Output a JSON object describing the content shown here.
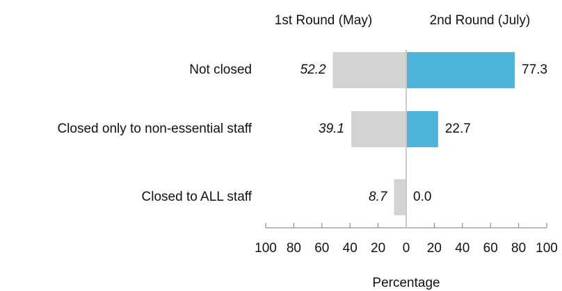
{
  "chart_data": {
    "type": "butterfly-bar",
    "categories": [
      "Not closed",
      "Closed only to non-essential staff",
      "Closed to ALL staff"
    ],
    "series": [
      {
        "name": "1st Round (May)",
        "color": "#d3d3d3",
        "values": [
          52.2,
          39.1,
          8.7
        ]
      },
      {
        "name": "2nd Round (July)",
        "color": "#4db5dc",
        "values": [
          77.3,
          22.7,
          0
        ],
        "value_labels": [
          "77.3",
          "22.7",
          "0.0"
        ]
      }
    ],
    "xlabel": "Percentage",
    "xlim": [
      -100,
      100
    ],
    "xticks": [
      {
        "value": -100,
        "label": "100"
      },
      {
        "value": -80,
        "label": "80"
      },
      {
        "value": -60,
        "label": "60"
      },
      {
        "value": -40,
        "label": "40"
      },
      {
        "value": -20,
        "label": "20"
      },
      0,
      20,
      40,
      60,
      80,
      100
    ]
  }
}
